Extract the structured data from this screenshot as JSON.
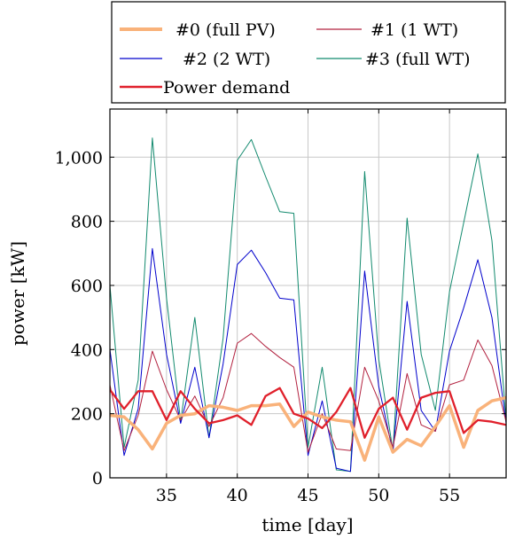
{
  "chart_data": {
    "type": "line",
    "xlabel": "time [day]",
    "ylabel": "power [kW]",
    "xlim": [
      31,
      59
    ],
    "ylim": [
      0,
      1150
    ],
    "xticks": [
      35,
      40,
      45,
      50,
      55
    ],
    "yticks": [
      0,
      200,
      400,
      600,
      800,
      1000
    ],
    "ytick_labels": [
      "0",
      "200",
      "400",
      "600",
      "800",
      "1,000"
    ],
    "grid": true,
    "legend_position": "above-plot",
    "x": [
      31,
      32,
      33,
      34,
      35,
      36,
      37,
      38,
      39,
      40,
      41,
      42,
      43,
      44,
      45,
      46,
      47,
      48,
      49,
      50,
      51,
      52,
      53,
      54,
      55,
      56,
      57,
      58,
      59
    ],
    "series": [
      {
        "name": "#0 (full PV)",
        "color": "#f9b27a",
        "values": [
          195,
          190,
          150,
          90,
          170,
          195,
          200,
          225,
          220,
          210,
          225,
          225,
          230,
          160,
          205,
          190,
          180,
          175,
          55,
          190,
          80,
          120,
          100,
          160,
          225,
          95,
          210,
          240,
          250
        ]
      },
      {
        "name": "#1 (1 WT)",
        "color": "#b2213f",
        "values": [
          290,
          85,
          195,
          395,
          275,
          180,
          255,
          160,
          250,
          420,
          450,
          410,
          375,
          345,
          80,
          200,
          90,
          85,
          345,
          240,
          95,
          325,
          165,
          145,
          290,
          305,
          430,
          350,
          175
        ]
      },
      {
        "name": "#2 (2 WT)",
        "color": "#0000cc",
        "values": [
          400,
          70,
          215,
          715,
          385,
          170,
          345,
          125,
          355,
          665,
          710,
          640,
          560,
          555,
          70,
          240,
          30,
          20,
          645,
          285,
          80,
          550,
          210,
          145,
          395,
          530,
          680,
          500,
          170
        ]
      },
      {
        "name": "#3 (full WT)",
        "color": "#128a6e",
        "values": [
          600,
          95,
          305,
          1060,
          560,
          175,
          500,
          125,
          435,
          990,
          1055,
          940,
          830,
          825,
          95,
          345,
          25,
          20,
          955,
          370,
          85,
          810,
          385,
          210,
          580,
          795,
          1010,
          740,
          180
        ]
      },
      {
        "name": "Power demand",
        "color": "#e0202b",
        "values": [
          275,
          215,
          270,
          270,
          180,
          270,
          215,
          170,
          180,
          195,
          165,
          255,
          280,
          200,
          185,
          155,
          205,
          280,
          125,
          215,
          250,
          150,
          250,
          265,
          270,
          140,
          180,
          175,
          165
        ]
      }
    ]
  }
}
